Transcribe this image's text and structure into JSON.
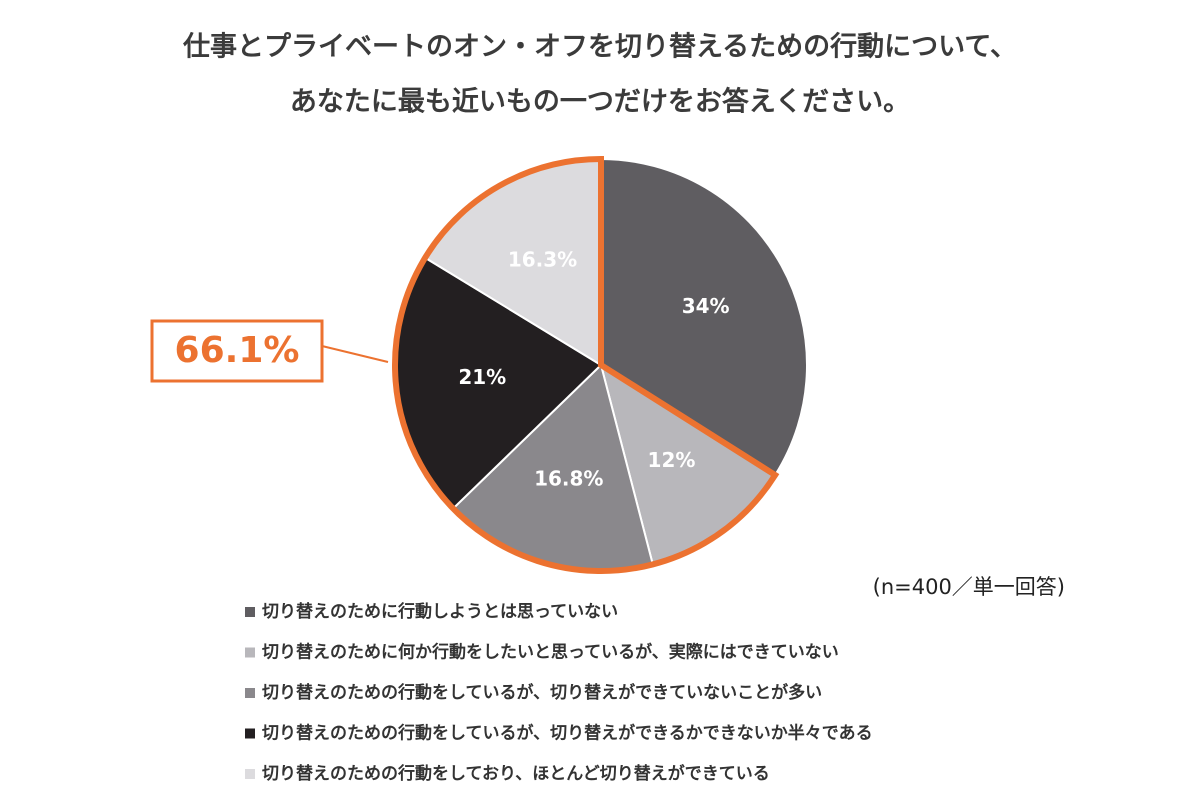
{
  "chart_data": {
    "type": "pie",
    "title": [
      "仕事とプライベートのオン・オフを切り替えるための行動について、",
      "あなたに最も近いもの一つだけをお答えください。"
    ],
    "categories": [
      "切り替えのために行動しようとは思っていない",
      "切り替えのために何か行動をしたいと思っているが、実際にはできていない",
      "切り替えのための行動をしているが、切り替えができていないことが多い",
      "切り替えのための行動をしているが、切り替えができるかできないか半々である",
      "切り替えのための行動をしており、ほとんど切り替えができている"
    ],
    "values": [
      34,
      12,
      16.8,
      21,
      16.3
    ],
    "value_labels": [
      "34%",
      "12%",
      "16.8%",
      "21%",
      "16.3%"
    ],
    "colors": [
      "#5f5d61",
      "#b8b7bb",
      "#8a888c",
      "#231f21",
      "#dcdbde"
    ],
    "highlight": {
      "label": "66.1%",
      "slices": [
        1,
        2,
        3,
        4
      ],
      "color": "#ec7230"
    },
    "note": "(n=400／単一回答)"
  }
}
